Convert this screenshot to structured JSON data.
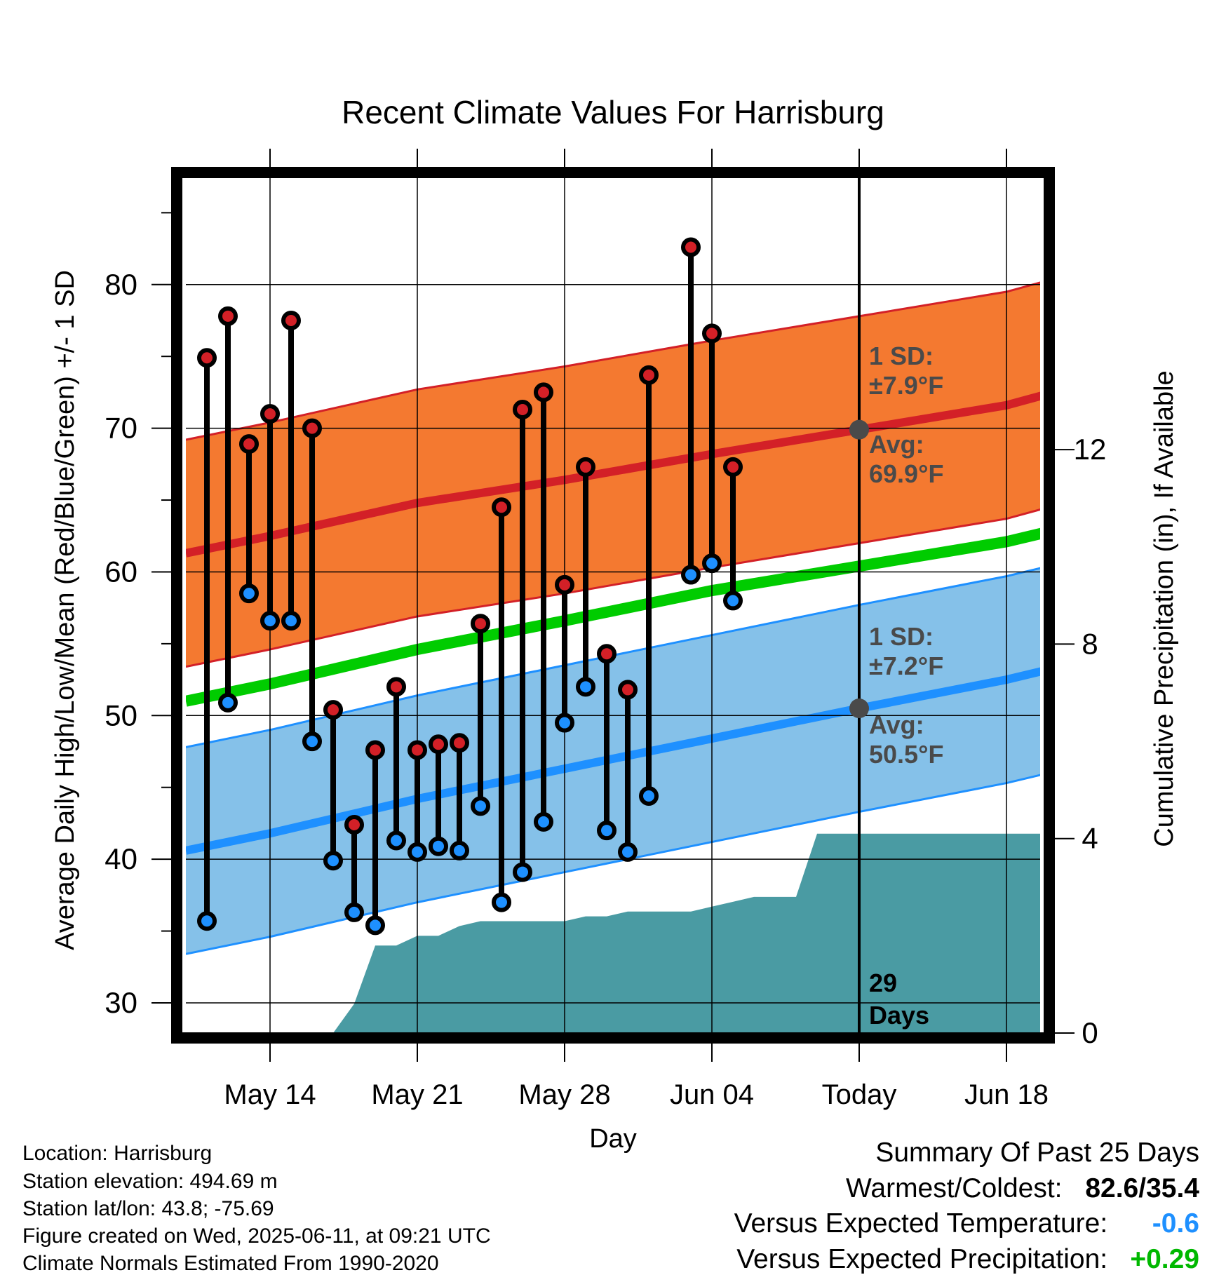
{
  "chart_data": {
    "type": "line",
    "title": "Recent Climate Values For Harrisburg",
    "xlabel": "Day",
    "ylabel": "Average Daily High/Low/Mean (Red/Blue/Green) +/- 1 SD",
    "y2label": "Cumulative Precipitation (in), If Available",
    "ylim": [
      27.9,
      87.8
    ],
    "y2lim": [
      0,
      17.7
    ],
    "xlim": [
      "2025-05-10",
      "2025-06-20"
    ],
    "yticks": [
      30,
      40,
      50,
      60,
      70,
      80
    ],
    "y2ticks": [
      0,
      4,
      8,
      12
    ],
    "xticks": [
      {
        "date": "2025-05-14",
        "label": "May 14"
      },
      {
        "date": "2025-05-21",
        "label": "May 21"
      },
      {
        "date": "2025-05-28",
        "label": "May 28"
      },
      {
        "date": "2025-06-04",
        "label": "Jun 04"
      },
      {
        "date": "2025-06-11",
        "label": "Today"
      },
      {
        "date": "2025-06-18",
        "label": "Jun 18"
      }
    ],
    "today": "2025-06-11",
    "grid": true,
    "normals": {
      "dates": [
        "2025-05-10",
        "2025-05-14",
        "2025-05-21",
        "2025-05-28",
        "2025-06-04",
        "2025-06-11",
        "2025-06-18",
        "2025-06-20"
      ],
      "high_mean": [
        61.3,
        62.5,
        64.8,
        66.4,
        68.2,
        69.9,
        71.6,
        72.4
      ],
      "high_sd": 7.9,
      "low_mean": [
        40.6,
        41.8,
        44.2,
        46.3,
        48.4,
        50.5,
        52.5,
        53.2
      ],
      "low_sd": 7.2,
      "avg_mean": [
        51.0,
        52.2,
        54.6,
        56.6,
        58.7,
        60.4,
        62.1,
        62.8
      ]
    },
    "colors": {
      "high": "#d32027",
      "high_band": "#f47930",
      "low": "#1e90ff",
      "low_band": "#85c1e9",
      "mean": "#00cc00",
      "precip": "#4a9ba3",
      "annotation": "#4a4a4a"
    },
    "observations": {
      "dates": [
        "2025-05-11",
        "2025-05-12",
        "2025-05-13",
        "2025-05-14",
        "2025-05-15",
        "2025-05-16",
        "2025-05-17",
        "2025-05-18",
        "2025-05-19",
        "2025-05-20",
        "2025-05-21",
        "2025-05-22",
        "2025-05-23",
        "2025-05-24",
        "2025-05-25",
        "2025-05-26",
        "2025-05-27",
        "2025-05-28",
        "2025-05-29",
        "2025-05-30",
        "2025-05-31",
        "2025-06-01",
        "2025-06-03",
        "2025-06-04",
        "2025-06-05",
        "2025-06-06"
      ],
      "high": [
        74.9,
        77.8,
        68.9,
        71.0,
        77.5,
        70.0,
        50.4,
        42.4,
        47.6,
        52.0,
        47.6,
        48.0,
        48.1,
        56.4,
        64.5,
        71.3,
        72.5,
        59.1,
        67.3,
        54.3,
        51.8,
        73.7,
        82.6,
        76.6,
        67.3,
        null
      ],
      "low": [
        35.7,
        50.9,
        58.5,
        56.6,
        56.6,
        48.2,
        39.9,
        36.3,
        35.4,
        41.3,
        40.5,
        40.9,
        40.6,
        43.7,
        37.0,
        39.1,
        42.6,
        49.5,
        52.0,
        42.0,
        40.5,
        44.4,
        59.8,
        60.6,
        58.0,
        null
      ]
    },
    "precip_cumulative": {
      "dates": [
        "2025-05-12",
        "2025-05-13",
        "2025-05-14",
        "2025-05-15",
        "2025-05-16",
        "2025-05-17",
        "2025-05-18",
        "2025-05-19",
        "2025-05-20",
        "2025-05-21",
        "2025-05-22",
        "2025-05-23",
        "2025-05-24",
        "2025-05-25",
        "2025-05-26",
        "2025-05-27",
        "2025-05-28",
        "2025-05-29",
        "2025-05-30",
        "2025-05-31",
        "2025-06-01",
        "2025-06-02",
        "2025-06-03",
        "2025-06-04",
        "2025-06-05",
        "2025-06-06",
        "2025-06-07",
        "2025-06-08",
        "2025-06-09",
        "2025-06-10",
        "2025-06-11",
        "2025-06-20"
      ],
      "values": [
        0,
        0,
        0,
        0,
        0,
        0,
        0.6,
        1.8,
        1.8,
        2.0,
        2.0,
        2.2,
        2.3,
        2.3,
        2.3,
        2.3,
        2.3,
        2.4,
        2.4,
        2.5,
        2.5,
        2.5,
        2.5,
        2.6,
        2.7,
        2.8,
        2.8,
        2.8,
        4.1,
        4.1,
        4.1,
        4.1
      ]
    },
    "annotations": {
      "high_sd_label": "1 SD:",
      "high_sd_value": "±7.9°F",
      "high_avg_label": "Avg:",
      "high_avg_value": "69.9°F",
      "low_sd_label": "1 SD:",
      "low_sd_value": "±7.2°F",
      "low_avg_label": "Avg:",
      "low_avg_value": "50.5°F",
      "days_number": "29",
      "days_word": "Days"
    }
  },
  "info": {
    "location": "Location: Harrisburg",
    "elevation": "Station elevation: 494.69 m",
    "latlon": "Station lat/lon: 43.8; -75.69",
    "created": "Figure created on Wed, 2025-06-11, at 09:21 UTC",
    "normals": "Climate Normals Estimated From 1990-2020"
  },
  "summary": {
    "title": "Summary Of Past 25 Days",
    "warmest_label": "Warmest/Coldest:",
    "warmest_value": "82.6/35.4",
    "temp_label": "Versus Expected Temperature:",
    "temp_value": "-0.6",
    "temp_color": "#1e90ff",
    "precip_label": "Versus Expected Precipitation:",
    "precip_value": "+0.29",
    "precip_color": "#00b800"
  }
}
